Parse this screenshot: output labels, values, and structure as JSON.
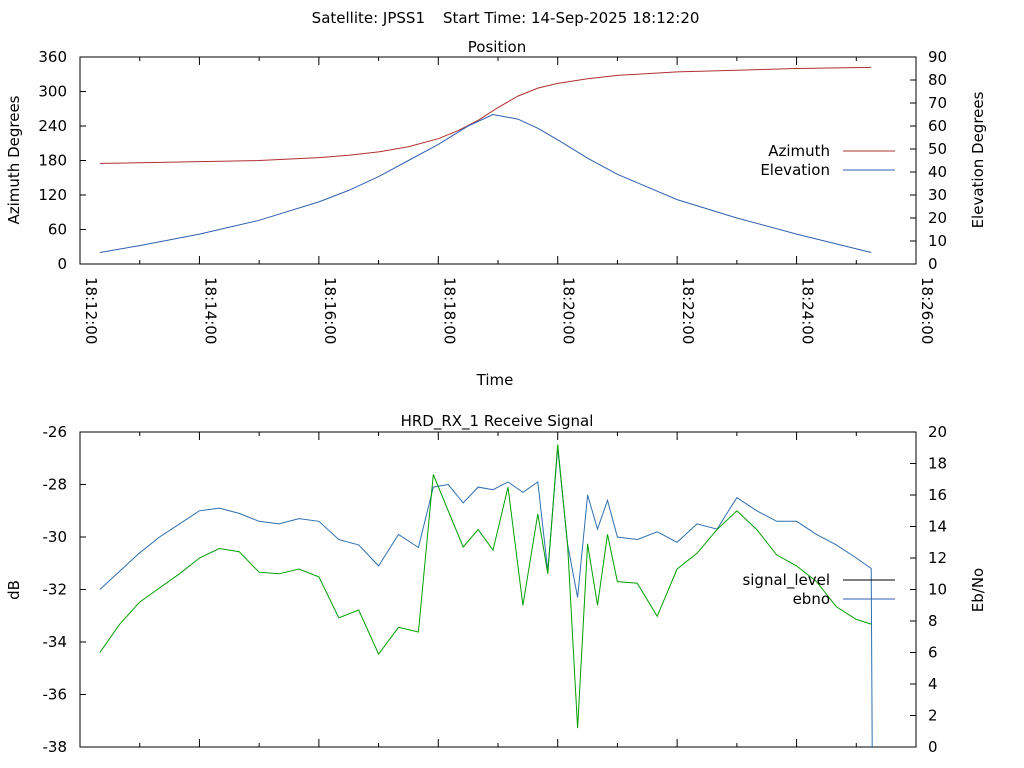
{
  "header": {
    "satellite": "Satellite: JPSS1",
    "start_time": "Start Time: 14-Sep-2025 18:12:20"
  },
  "colors": {
    "azimuth": "#b03030",
    "elevation": "#3060b0",
    "signal_level": "#000000",
    "ebno_legend": "#3060b0",
    "signal_trace": "#2f6fb0",
    "ebno_trace": "#00a000"
  },
  "chart_data": [
    {
      "type": "line",
      "title": "Position",
      "xlabel": "Time",
      "ylabel": "Azimuth Degrees",
      "y2label": "Elevation Degrees",
      "x_ticks": [
        "18:12:00",
        "18:14:00",
        "18:16:00",
        "18:18:00",
        "18:20:00",
        "18:22:00",
        "18:24:00",
        "18:26:00"
      ],
      "xlim": [
        "18:12:00",
        "18:26:00"
      ],
      "y_ticks": [
        "0",
        "60",
        "120",
        "180",
        "240",
        "300",
        "360"
      ],
      "ylim": [
        0,
        360
      ],
      "y2_ticks": [
        "0",
        "10",
        "20",
        "30",
        "40",
        "50",
        "60",
        "70",
        "80",
        "90"
      ],
      "y2lim": [
        0,
        90
      ],
      "legend_position": "right",
      "series": [
        {
          "name": "Azimuth",
          "axis": "left",
          "x": [
            "18:12:20",
            "18:13:00",
            "18:14:00",
            "18:15:00",
            "18:16:00",
            "18:16:30",
            "18:17:00",
            "18:17:30",
            "18:18:00",
            "18:18:20",
            "18:18:40",
            "18:19:00",
            "18:19:20",
            "18:19:40",
            "18:20:00",
            "18:20:30",
            "18:21:00",
            "18:22:00",
            "18:23:00",
            "18:24:00",
            "18:25:15"
          ],
          "values": [
            175,
            176,
            178,
            180,
            185,
            189,
            195,
            204,
            218,
            232,
            250,
            272,
            292,
            306,
            314,
            322,
            328,
            334,
            337,
            340,
            342
          ]
        },
        {
          "name": "Elevation",
          "axis": "right",
          "x": [
            "18:12:20",
            "18:13:00",
            "18:14:00",
            "18:15:00",
            "18:16:00",
            "18:16:30",
            "18:17:00",
            "18:17:30",
            "18:18:00",
            "18:18:30",
            "18:18:55",
            "18:19:20",
            "18:19:40",
            "18:20:00",
            "18:20:30",
            "18:21:00",
            "18:22:00",
            "18:23:00",
            "18:24:00",
            "18:25:15"
          ],
          "values": [
            5,
            8,
            13,
            19,
            27,
            32,
            38,
            45,
            52,
            60,
            65,
            63,
            59,
            54,
            46,
            39,
            28,
            20,
            13,
            5
          ]
        }
      ]
    },
    {
      "type": "line",
      "title": "HRD_RX_1 Receive Signal",
      "ylabel": "dB",
      "y2label": "Eb/No",
      "xlim": [
        "18:12:00",
        "18:26:00"
      ],
      "y_ticks": [
        "-38",
        "-36",
        "-34",
        "-32",
        "-30",
        "-28",
        "-26"
      ],
      "ylim": [
        -38,
        -26
      ],
      "y2_ticks": [
        "0",
        "2",
        "4",
        "6",
        "8",
        "10",
        "12",
        "14",
        "16",
        "18",
        "20"
      ],
      "y2lim": [
        0,
        20
      ],
      "legend_position": "right",
      "legend": [
        "signal_level",
        "ebno"
      ],
      "series": [
        {
          "name": "signal_level",
          "axis": "left",
          "x": [
            "18:12:20",
            "18:12:40",
            "18:13:00",
            "18:13:20",
            "18:13:40",
            "18:14:00",
            "18:14:20",
            "18:14:40",
            "18:15:00",
            "18:15:20",
            "18:15:40",
            "18:16:00",
            "18:16:20",
            "18:16:40",
            "18:17:00",
            "18:17:20",
            "18:17:40",
            "18:17:55",
            "18:18:10",
            "18:18:25",
            "18:18:40",
            "18:18:55",
            "18:19:10",
            "18:19:25",
            "18:19:40",
            "18:19:50",
            "18:20:00",
            "18:20:10",
            "18:20:20",
            "18:20:30",
            "18:20:40",
            "18:20:50",
            "18:21:00",
            "18:21:20",
            "18:21:40",
            "18:22:00",
            "18:22:20",
            "18:22:40",
            "18:23:00",
            "18:23:20",
            "18:23:40",
            "18:24:00",
            "18:24:20",
            "18:24:40",
            "18:25:00",
            "18:25:15",
            "18:25:16"
          ],
          "values": [
            -32.0,
            -31.3,
            -30.6,
            -30.0,
            -29.5,
            -29.0,
            -28.9,
            -29.1,
            -29.4,
            -29.5,
            -29.3,
            -29.4,
            -30.1,
            -30.3,
            -31.1,
            -29.9,
            -30.4,
            -28.1,
            -28.0,
            -28.7,
            -28.1,
            -28.2,
            -27.9,
            -28.3,
            -27.9,
            -31.3,
            -26.6,
            -30.3,
            -32.3,
            -28.4,
            -29.7,
            -28.6,
            -30.0,
            -30.1,
            -29.8,
            -30.2,
            -29.5,
            -29.7,
            -28.5,
            -29.0,
            -29.4,
            -29.4,
            -29.9,
            -30.3,
            -30.8,
            -31.2,
            -38.0
          ]
        },
        {
          "name": "ebno",
          "axis": "right",
          "x": [
            "18:12:20",
            "18:12:40",
            "18:13:00",
            "18:13:20",
            "18:13:40",
            "18:14:00",
            "18:14:20",
            "18:14:40",
            "18:15:00",
            "18:15:20",
            "18:15:40",
            "18:16:00",
            "18:16:20",
            "18:16:40",
            "18:17:00",
            "18:17:20",
            "18:17:40",
            "18:17:55",
            "18:18:10",
            "18:18:25",
            "18:18:40",
            "18:18:55",
            "18:19:10",
            "18:19:25",
            "18:19:40",
            "18:19:50",
            "18:20:00",
            "18:20:10",
            "18:20:20",
            "18:20:30",
            "18:20:40",
            "18:20:50",
            "18:21:00",
            "18:21:20",
            "18:21:40",
            "18:22:00",
            "18:22:20",
            "18:22:40",
            "18:23:00",
            "18:23:20",
            "18:23:40",
            "18:24:00",
            "18:24:20",
            "18:24:40",
            "18:25:00",
            "18:25:15"
          ],
          "values": [
            6.0,
            7.8,
            9.2,
            10.1,
            11.0,
            12.0,
            12.6,
            12.4,
            11.1,
            11.0,
            11.3,
            10.8,
            8.2,
            8.7,
            5.9,
            7.6,
            7.3,
            17.3,
            15.0,
            12.7,
            13.8,
            12.5,
            16.5,
            9.0,
            14.8,
            11.0,
            19.2,
            12.7,
            1.2,
            12.9,
            9.0,
            13.5,
            10.5,
            10.4,
            8.3,
            11.3,
            12.3,
            13.8,
            15.0,
            13.8,
            12.2,
            11.5,
            10.5,
            8.9,
            8.1,
            7.8
          ]
        }
      ]
    }
  ]
}
